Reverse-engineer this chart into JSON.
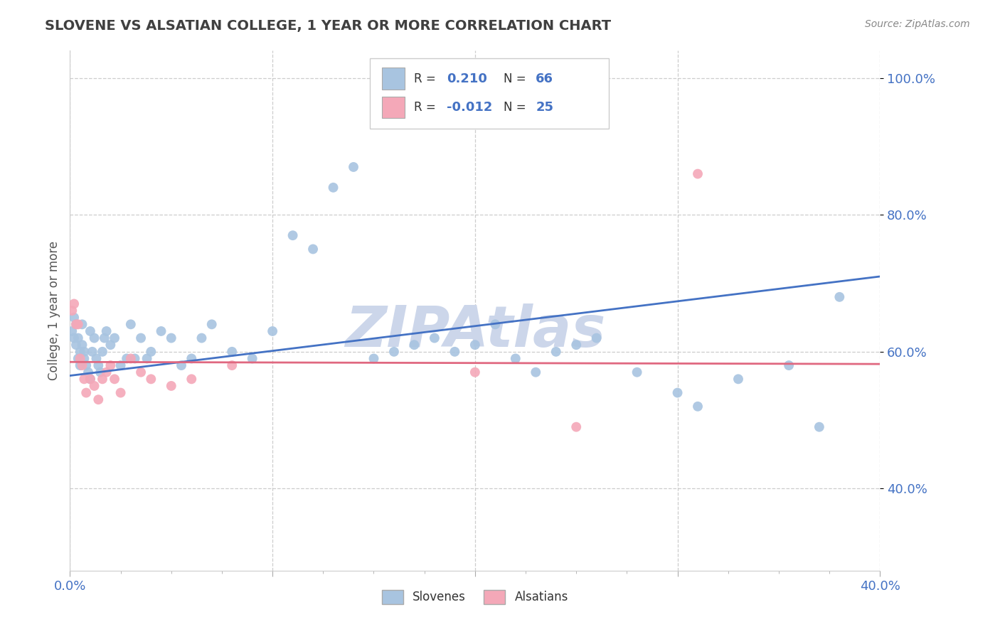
{
  "title": "SLOVENE VS ALSATIAN COLLEGE, 1 YEAR OR MORE CORRELATION CHART",
  "source_text": "Source: ZipAtlas.com",
  "ylabel": "College, 1 year or more",
  "xlim": [
    0.0,
    0.4
  ],
  "ylim": [
    0.28,
    1.04
  ],
  "xtick_vals": [
    0.0,
    0.1,
    0.2,
    0.3,
    0.4
  ],
  "xtick_labels": [
    "0.0%",
    "",
    "",
    "",
    "40.0%"
  ],
  "ytick_vals": [
    0.4,
    0.6,
    0.8,
    1.0
  ],
  "ytick_labels": [
    "40.0%",
    "60.0%",
    "80.0%",
    "100.0%"
  ],
  "slovene_color": "#a8c4e0",
  "alsatian_color": "#f4a8b8",
  "slovene_line_color": "#4472c4",
  "alsatian_line_color": "#e06880",
  "background_color": "#ffffff",
  "grid_color": "#c8c8c8",
  "legend_R_slovene": "0.210",
  "legend_N_slovene": "66",
  "legend_R_alsatian": "-0.012",
  "legend_N_alsatian": "25",
  "title_color": "#404040",
  "axis_label_color": "#555555",
  "tick_color": "#4472c4",
  "watermark_color": "#ccd6ea",
  "slovene_x": [
    0.001,
    0.002,
    0.002,
    0.003,
    0.003,
    0.004,
    0.004,
    0.005,
    0.005,
    0.006,
    0.006,
    0.007,
    0.007,
    0.008,
    0.009,
    0.01,
    0.01,
    0.011,
    0.012,
    0.013,
    0.014,
    0.015,
    0.016,
    0.017,
    0.018,
    0.02,
    0.022,
    0.025,
    0.028,
    0.03,
    0.032,
    0.035,
    0.038,
    0.04,
    0.045,
    0.05,
    0.055,
    0.06,
    0.065,
    0.07,
    0.08,
    0.09,
    0.1,
    0.11,
    0.12,
    0.13,
    0.14,
    0.15,
    0.16,
    0.17,
    0.18,
    0.19,
    0.2,
    0.21,
    0.22,
    0.23,
    0.24,
    0.25,
    0.26,
    0.28,
    0.3,
    0.31,
    0.33,
    0.355,
    0.37,
    0.38
  ],
  "slovene_y": [
    0.63,
    0.65,
    0.62,
    0.64,
    0.61,
    0.59,
    0.62,
    0.6,
    0.58,
    0.61,
    0.64,
    0.6,
    0.59,
    0.58,
    0.57,
    0.56,
    0.63,
    0.6,
    0.62,
    0.59,
    0.58,
    0.57,
    0.6,
    0.62,
    0.63,
    0.61,
    0.62,
    0.58,
    0.59,
    0.64,
    0.59,
    0.62,
    0.59,
    0.6,
    0.63,
    0.62,
    0.58,
    0.59,
    0.62,
    0.64,
    0.6,
    0.59,
    0.63,
    0.77,
    0.75,
    0.84,
    0.87,
    0.59,
    0.6,
    0.61,
    0.62,
    0.6,
    0.61,
    0.64,
    0.59,
    0.57,
    0.6,
    0.61,
    0.62,
    0.57,
    0.54,
    0.52,
    0.56,
    0.58,
    0.49,
    0.68
  ],
  "alsatian_x": [
    0.001,
    0.002,
    0.003,
    0.004,
    0.005,
    0.006,
    0.007,
    0.008,
    0.01,
    0.012,
    0.014,
    0.016,
    0.018,
    0.02,
    0.022,
    0.025,
    0.03,
    0.035,
    0.04,
    0.05,
    0.06,
    0.08,
    0.2,
    0.25,
    0.31
  ],
  "alsatian_y": [
    0.66,
    0.67,
    0.64,
    0.64,
    0.59,
    0.58,
    0.56,
    0.54,
    0.56,
    0.55,
    0.53,
    0.56,
    0.57,
    0.58,
    0.56,
    0.54,
    0.59,
    0.57,
    0.56,
    0.55,
    0.56,
    0.58,
    0.57,
    0.49,
    0.86
  ],
  "slovene_line_x": [
    0.0,
    0.4
  ],
  "slovene_line_y": [
    0.565,
    0.71
  ],
  "alsatian_line_x": [
    0.0,
    0.4
  ],
  "alsatian_line_y": [
    0.585,
    0.582
  ]
}
